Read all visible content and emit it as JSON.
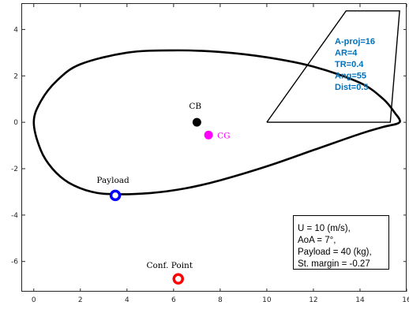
{
  "chart_data": {
    "type": "scatter",
    "xlim": [
      -0.5,
      16
    ],
    "ylim": [
      -7.3,
      5.1
    ],
    "xticks": [
      0,
      2,
      4,
      6,
      8,
      10,
      12,
      14,
      16
    ],
    "yticks": [
      -6,
      -4,
      -2,
      0,
      2,
      4
    ],
    "grid": false,
    "hull_outline": [
      [
        15.5,
        0.4
      ],
      [
        15.0,
        1.0
      ],
      [
        14.0,
        1.7
      ],
      [
        12.0,
        2.4
      ],
      [
        10.0,
        2.8
      ],
      [
        8.0,
        3.03
      ],
      [
        6.0,
        3.1
      ],
      [
        4.0,
        3.0
      ],
      [
        2.0,
        2.5
      ],
      [
        1.0,
        1.8
      ],
      [
        0.3,
        0.9
      ],
      [
        0.0,
        0.0
      ],
      [
        0.3,
        -1.2
      ],
      [
        0.8,
        -2.0
      ],
      [
        1.5,
        -2.6
      ],
      [
        2.5,
        -3.0
      ],
      [
        3.5,
        -3.1
      ],
      [
        5.0,
        -3.05
      ],
      [
        6.5,
        -2.85
      ],
      [
        8.0,
        -2.5
      ],
      [
        10.0,
        -1.9
      ],
      [
        12.0,
        -1.2
      ],
      [
        14.0,
        -0.5
      ],
      [
        15.0,
        -0.2
      ],
      [
        15.7,
        0.0
      ],
      [
        15.5,
        0.4
      ]
    ],
    "fin_outline": [
      [
        10.0,
        0.0
      ],
      [
        13.4,
        4.8
      ],
      [
        15.7,
        4.8
      ],
      [
        15.3,
        0.0
      ],
      [
        10.0,
        0.0
      ]
    ],
    "points": [
      {
        "label": "CB",
        "x": 7.0,
        "y": 0.0,
        "color": "#000000",
        "style": "filled"
      },
      {
        "label": "CG",
        "x": 7.5,
        "y": -0.55,
        "color": "#ff00ff",
        "style": "filled"
      },
      {
        "label": "Payload",
        "x": 3.5,
        "y": -3.15,
        "color": "#0000ff",
        "style": "ring"
      },
      {
        "label": "Conf. Point",
        "x": 6.2,
        "y": -6.75,
        "color": "#ff0000",
        "style": "ring"
      }
    ],
    "fin_params": [
      "A-proj=16",
      "AR=4",
      "TR=0.4",
      "Ang=55",
      "Dist=0.5"
    ],
    "param_color": "#0072bd",
    "info_lines": [
      "U = 10 (m/s),",
      "AoA = 7°,",
      "Payload = 40 (kg),",
      "St. margin = -0.27"
    ]
  }
}
